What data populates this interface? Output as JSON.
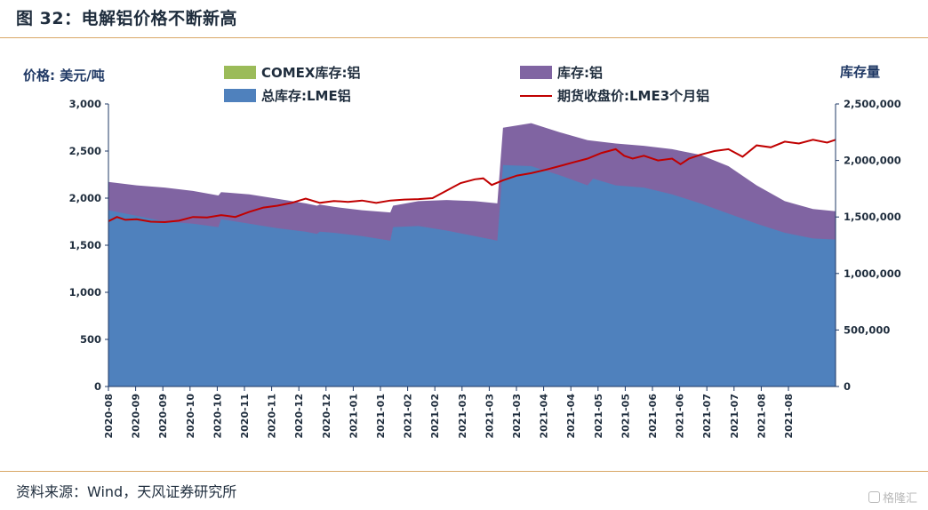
{
  "figure": {
    "title": "图 32：电解铝价格不断新高",
    "source": "资料来源：Wind，天风证券研究所",
    "watermark": "格隆汇"
  },
  "colors": {
    "comex": "#9bbb59",
    "total_inventory": "#8064a2",
    "lme_inventory": "#4f81bd",
    "price_line": "#c00000",
    "axis": "#1f3864",
    "rule": "#d9a766"
  },
  "chart_data": {
    "type": "area",
    "left_axis_label": "价格: 美元/吨",
    "right_axis_label": "库存量",
    "left_ylim": [
      0,
      3000
    ],
    "left_ticks": [
      "0",
      "500",
      "1,000",
      "1,500",
      "2,000",
      "2,500",
      "3,000"
    ],
    "right_ylim": [
      0,
      2500000
    ],
    "right_ticks": [
      "0",
      "500,000",
      "1,000,000",
      "1,500,000",
      "2,000,000",
      "2,500,000"
    ],
    "x_tick_labels": [
      "2020-08",
      "2020-09",
      "2020-09",
      "2020-10",
      "2020-10",
      "2020-11",
      "2020-11",
      "2020-12",
      "2020-12",
      "2021-01",
      "2021-01",
      "2021-02",
      "2021-02",
      "2021-03",
      "2021-03",
      "2021-03",
      "2021-04",
      "2021-04",
      "2021-05",
      "2021-05",
      "2021-06",
      "2021-06",
      "2021-07",
      "2021-07",
      "2021-08",
      "2021-08"
    ],
    "legend": [
      {
        "key": "comex",
        "label": "COMEX库存:铝",
        "kind": "area"
      },
      {
        "key": "total",
        "label": "库存:铝",
        "kind": "area"
      },
      {
        "key": "lme",
        "label": "总库存:LME铝",
        "kind": "area"
      },
      {
        "key": "price",
        "label": "期货收盘价:LME3个月铝",
        "kind": "line"
      }
    ],
    "x_range": [
      0,
      25.8
    ],
    "series": {
      "total_inventory": {
        "axis": "right",
        "x": [
          0,
          1,
          2,
          3,
          3.9,
          4.0,
          5,
          6,
          7,
          7.4,
          7.5,
          8,
          9,
          10,
          10.1,
          11,
          12,
          13,
          13.8,
          14.0,
          15,
          16,
          17,
          18,
          19,
          20,
          21,
          22,
          23,
          24,
          25,
          25.8
        ],
        "y": [
          1810000,
          1780000,
          1760000,
          1730000,
          1690000,
          1720000,
          1700000,
          1660000,
          1620000,
          1600000,
          1610000,
          1590000,
          1560000,
          1540000,
          1600000,
          1640000,
          1650000,
          1640000,
          1620000,
          2290000,
          2330000,
          2250000,
          2180000,
          2150000,
          2130000,
          2100000,
          2050000,
          1950000,
          1780000,
          1640000,
          1570000,
          1550000
        ]
      },
      "lme_inventory": {
        "axis": "right",
        "x": [
          0,
          1,
          2,
          3,
          3.9,
          4.0,
          5,
          6,
          7,
          7.4,
          7.5,
          8,
          9,
          10,
          10.1,
          11,
          12,
          13,
          13.8,
          14.0,
          15,
          16,
          17,
          17.2,
          18,
          19,
          20,
          21,
          22,
          23,
          24,
          25,
          25.8
        ],
        "y": [
          1560000,
          1510000,
          1460000,
          1440000,
          1410000,
          1480000,
          1440000,
          1400000,
          1370000,
          1350000,
          1370000,
          1360000,
          1330000,
          1290000,
          1410000,
          1420000,
          1380000,
          1330000,
          1290000,
          1960000,
          1950000,
          1870000,
          1780000,
          1840000,
          1780000,
          1760000,
          1700000,
          1620000,
          1530000,
          1440000,
          1360000,
          1310000,
          1300000
        ]
      },
      "comex_inventory": {
        "axis": "right",
        "x": [
          0,
          25.8
        ],
        "y": [
          0,
          0
        ]
      },
      "price": {
        "axis": "left",
        "x": [
          0,
          0.3,
          0.6,
          1,
          1.5,
          2,
          2.5,
          3,
          3.5,
          4,
          4.5,
          5,
          5.5,
          6,
          6.5,
          7,
          7.5,
          8,
          8.5,
          9,
          9.5,
          10,
          10.5,
          11,
          11.5,
          12,
          12.5,
          13,
          13.3,
          13.6,
          14,
          14.5,
          15,
          15.5,
          16,
          16.5,
          17,
          17.5,
          18,
          18.3,
          18.6,
          19,
          19.5,
          20,
          20.3,
          20.6,
          21,
          21.5,
          22,
          22.5,
          23,
          23.5,
          24,
          24.5,
          25,
          25.5,
          25.8
        ],
        "y": [
          1755,
          1800,
          1770,
          1775,
          1750,
          1745,
          1760,
          1800,
          1795,
          1820,
          1800,
          1855,
          1900,
          1920,
          1950,
          1995,
          1950,
          1970,
          1960,
          1975,
          1950,
          1975,
          1985,
          1990,
          2000,
          2080,
          2160,
          2200,
          2210,
          2140,
          2190,
          2240,
          2265,
          2300,
          2340,
          2380,
          2420,
          2480,
          2520,
          2450,
          2420,
          2450,
          2400,
          2420,
          2360,
          2420,
          2460,
          2500,
          2520,
          2440,
          2560,
          2540,
          2600,
          2580,
          2620,
          2590,
          2620
        ]
      }
    }
  }
}
